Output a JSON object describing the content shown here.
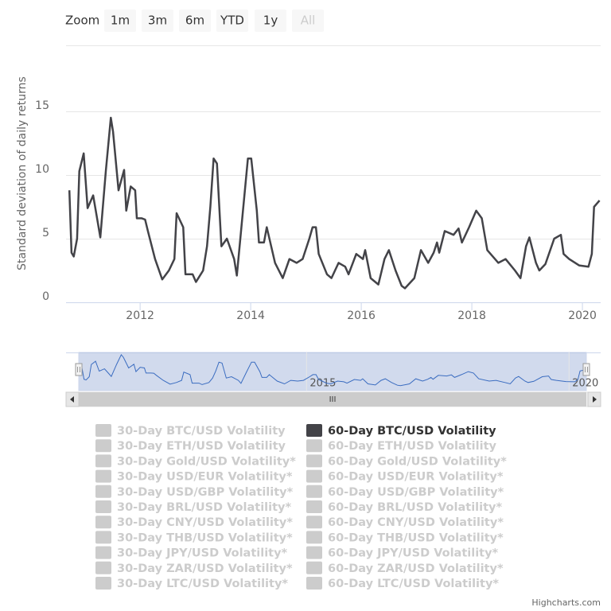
{
  "range_selector": {
    "label": "Zoom",
    "buttons": [
      "1m",
      "3m",
      "6m",
      "YTD",
      "1y",
      "All"
    ],
    "disabled": [
      "All"
    ]
  },
  "credits": "Highcharts.com",
  "chart_data": {
    "type": "line",
    "y_label": "Standard deviation of daily returns",
    "xlim": [
      2010.66,
      2020.33
    ],
    "xticks": [
      2012,
      2014,
      2016,
      2018,
      2020
    ],
    "ylim": [
      0,
      20
    ],
    "yticks": [
      0,
      5,
      10,
      15
    ],
    "grid": true,
    "navigator_xticks": [
      2015,
      2020
    ],
    "x": [
      2010.72,
      2010.76,
      2010.8,
      2010.86,
      2010.9,
      2010.98,
      2011.05,
      2011.15,
      2011.21,
      2011.28,
      2011.38,
      2011.47,
      2011.51,
      2011.55,
      2011.61,
      2011.71,
      2011.75,
      2011.83,
      2011.91,
      2011.94,
      2012.03,
      2012.09,
      2012.14,
      2012.27,
      2012.4,
      2012.52,
      2012.62,
      2012.66,
      2012.78,
      2012.82,
      2012.95,
      2013.01,
      2013.14,
      2013.21,
      2013.27,
      2013.33,
      2013.39,
      2013.47,
      2013.57,
      2013.7,
      2013.75,
      2013.86,
      2013.95,
      2014.01,
      2014.11,
      2014.15,
      2014.24,
      2014.29,
      2014.44,
      2014.58,
      2014.7,
      2014.83,
      2014.94,
      2015.06,
      2015.12,
      2015.18,
      2015.23,
      2015.38,
      2015.46,
      2015.59,
      2015.71,
      2015.77,
      2015.91,
      2016.03,
      2016.07,
      2016.17,
      2016.31,
      2016.42,
      2016.5,
      2016.62,
      2016.73,
      2016.79,
      2016.96,
      2017.08,
      2017.21,
      2017.31,
      2017.37,
      2017.41,
      2017.51,
      2017.67,
      2017.76,
      2017.82,
      2017.95,
      2018.08,
      2018.18,
      2018.28,
      2018.48,
      2018.61,
      2018.78,
      2018.88,
      2018.98,
      2019.04,
      2019.16,
      2019.22,
      2019.33,
      2019.49,
      2019.61,
      2019.66,
      2019.76,
      2019.94,
      2020.11,
      2020.17,
      2020.21,
      2020.31
    ],
    "series": [
      {
        "name": "30-Day BTC/USD Volatility",
        "visible": false
      },
      {
        "name": "60-Day BTC/USD Volatility",
        "visible": true,
        "color": "#434348",
        "values": [
          8.8,
          3.9,
          3.6,
          5.0,
          10.3,
          11.7,
          7.4,
          8.4,
          6.9,
          5.1,
          10.3,
          14.5,
          13.4,
          11.6,
          8.8,
          10.4,
          7.2,
          9.1,
          8.8,
          6.6,
          6.6,
          6.5,
          5.6,
          3.4,
          1.8,
          2.5,
          3.4,
          7.0,
          5.9,
          2.2,
          2.2,
          1.6,
          2.5,
          4.4,
          7.5,
          11.3,
          10.9,
          4.4,
          5.0,
          3.4,
          2.1,
          7.2,
          11.3,
          11.3,
          7.2,
          4.7,
          4.7,
          5.9,
          3.1,
          1.9,
          3.4,
          3.1,
          3.4,
          5.0,
          5.9,
          5.9,
          3.8,
          2.2,
          1.9,
          3.1,
          2.8,
          2.2,
          3.8,
          3.4,
          4.1,
          1.9,
          1.4,
          3.4,
          4.1,
          2.5,
          1.3,
          1.1,
          1.9,
          4.1,
          3.1,
          3.9,
          4.7,
          3.9,
          5.6,
          5.3,
          5.8,
          4.7,
          5.9,
          7.2,
          6.6,
          4.1,
          3.1,
          3.4,
          2.5,
          1.9,
          4.4,
          5.1,
          3.1,
          2.5,
          3.0,
          5.0,
          5.3,
          3.8,
          3.4,
          2.9,
          2.8,
          3.8,
          7.5,
          8.0
        ]
      },
      {
        "name": "30-Day ETH/USD Volatility",
        "visible": false
      },
      {
        "name": "60-Day ETH/USD Volatility",
        "visible": false
      },
      {
        "name": "30-Day Gold/USD Volatility*",
        "visible": false
      },
      {
        "name": "60-Day Gold/USD Volatility*",
        "visible": false
      },
      {
        "name": "30-Day USD/EUR Volatility*",
        "visible": false
      },
      {
        "name": "60-Day USD/EUR Volatility*",
        "visible": false
      },
      {
        "name": "30-Day USD/GBP Volatility*",
        "visible": false
      },
      {
        "name": "60-Day USD/GBP Volatility*",
        "visible": false
      },
      {
        "name": "30-Day BRL/USD Volatility*",
        "visible": false
      },
      {
        "name": "60-Day BRL/USD Volatility*",
        "visible": false
      },
      {
        "name": "30-Day CNY/USD Volatility*",
        "visible": false
      },
      {
        "name": "60-Day CNY/USD Volatility*",
        "visible": false
      },
      {
        "name": "30-Day THB/USD Volatility*",
        "visible": false
      },
      {
        "name": "60-Day THB/USD Volatility*",
        "visible": false
      },
      {
        "name": "30-Day JPY/USD Volatility*",
        "visible": false
      },
      {
        "name": "60-Day JPY/USD Volatility*",
        "visible": false
      },
      {
        "name": "30-Day ZAR/USD Volatility*",
        "visible": false
      },
      {
        "name": "60-Day ZAR/USD Volatility*",
        "visible": false
      },
      {
        "name": "30-Day LTC/USD Volatility*",
        "visible": false
      },
      {
        "name": "60-Day LTC/USD Volatility*",
        "visible": false
      }
    ]
  }
}
